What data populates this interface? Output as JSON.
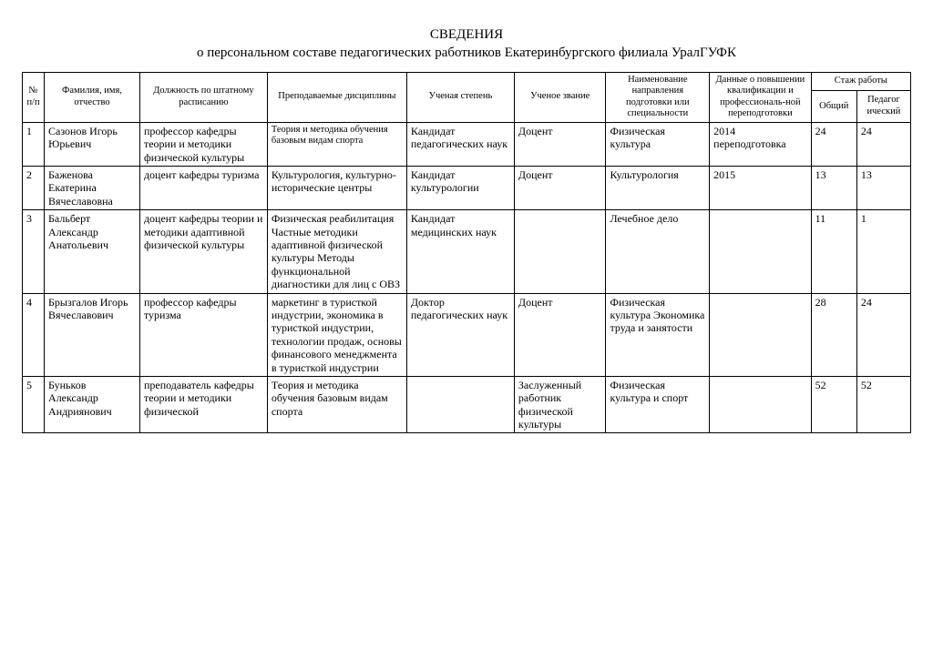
{
  "title": {
    "line1": "СВЕДЕНИЯ",
    "line2": "о персональном составе педагогических работников Екатеринбургского филиала  УралГУФК"
  },
  "headers": {
    "num": "№ п/п",
    "name": "Фамилия, имя, отчество",
    "position": "Должность по штатному расписанию",
    "disciplines": "Преподаваемые дисциплины",
    "degree": "Ученая степень",
    "rank": "Ученое звание",
    "speciality": "Наименование направления подготовки или специальности",
    "qualification": "Данные о повышении квалификации и профессиональ-ной переподготовки",
    "experience_group": "Стаж работы",
    "exp_total": "Общий",
    "exp_pedag": "Педагог ический"
  },
  "rows": [
    {
      "num": "1",
      "name": "Сазонов Игорь Юрьевич",
      "position": "профессор кафедры теории и методики физической культуры",
      "disciplines": "Теория и методика обучения базовым видам спорта",
      "degree": "Кандидат педагогических наук",
      "rank": "Доцент",
      "speciality": "Физическая культура",
      "qualification": "2014 переподготовка",
      "exp_total": "24",
      "exp_pedag": "24"
    },
    {
      "num": "2",
      "name": "Баженова Екатерина Вячеславовна",
      "position": "доцент кафедры туризма",
      "disciplines": "Культурология, культурно-исторические центры",
      "degree": "Кандидат культурологии",
      "rank": "Доцент",
      "speciality": "Культурология",
      "qualification": "2015",
      "exp_total": "13",
      "exp_pedag": "13"
    },
    {
      "num": "3",
      "name": "Бальберт Александр Анатольевич",
      "position": "доцент кафедры теории и методики адаптивной физической культуры",
      "disciplines": "Физическая реабилитация Частные методики адаптивной физической культуры Методы функциональной диагностики для лиц с ОВЗ",
      "degree": "Кандидат медицинских наук",
      "rank": "",
      "speciality": "Лечебное дело",
      "qualification": "",
      "exp_total": "11",
      "exp_pedag": "1"
    },
    {
      "num": "4",
      "name": "Брызгалов Игорь Вячеславович",
      "position": "профессор кафедры туризма",
      "disciplines": "маркетинг в туристкой индустрии, экономика в туристкой индустрии, технологии продаж, основы финансового менеджмента в туристкой индустрии",
      "degree": "Доктор педагогических наук",
      "rank": "Доцент",
      "speciality": "Физическая культура Экономика труда и занятости",
      "qualification": "",
      "exp_total": "28",
      "exp_pedag": "24"
    },
    {
      "num": "5",
      "name": "Буньков Александр Андриянович",
      "position": "преподаватель кафедры теории и методики физической",
      "disciplines": "Теория и методика обучения базовым видам спорта",
      "degree": "",
      "rank": "Заслуженный работник физической культуры",
      "speciality": "Физическая культура и спорт",
      "qualification": "",
      "exp_total": "52",
      "exp_pedag": "52"
    }
  ],
  "style": {
    "row3_disc_fontsize": "10.5px"
  }
}
